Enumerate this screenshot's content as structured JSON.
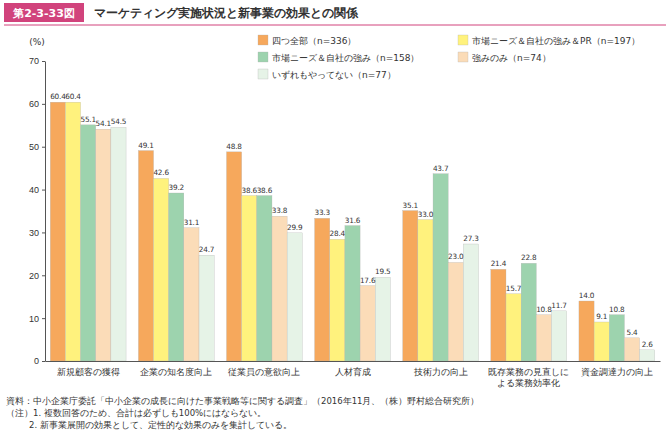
{
  "chart_data": {
    "type": "bar",
    "figure_label": "第2-3-33図",
    "title": "マーケティング実施状況と新事業の効果との関係",
    "y_label": "(%)",
    "categories": [
      "新規顧客の獲得",
      "企業の知名度向上",
      "従業員の意欲向上",
      "人材育成",
      "技術力の向上",
      "既存業務の見直しによる業務効率化",
      "資金調達力の向上"
    ],
    "series": [
      {
        "name": "四つ全部（n=336）",
        "color": "#f6a85c",
        "values": [
          60.4,
          49.1,
          48.8,
          33.3,
          35.1,
          21.4,
          14.0
        ],
        "value_labels": [
          "60.4",
          "49.1",
          "48.8",
          "33.3",
          "35.1",
          "21.4",
          "14.0"
        ]
      },
      {
        "name": "市場ニーズ＆自社の強み＆PR（n=197）",
        "color": "#fff27d",
        "values": [
          60.4,
          42.6,
          38.6,
          28.4,
          33.0,
          15.7,
          9.1
        ],
        "value_labels": [
          "60.4",
          "42.6",
          "38.6",
          "28.4",
          "33.0",
          "15.7",
          "9.1"
        ]
      },
      {
        "name": "市場ニーズ＆自社の強み（n=158）",
        "color": "#9dd3ae",
        "values": [
          55.1,
          39.2,
          38.6,
          31.6,
          43.7,
          22.8,
          10.8
        ],
        "value_labels": [
          "55.1",
          "39.2",
          "38.6",
          "31.6",
          "43.7",
          "22.8",
          "10.8"
        ]
      },
      {
        "name": "強みのみ（n=74）",
        "color": "#fbdcb8",
        "values": [
          54.1,
          31.1,
          33.8,
          17.6,
          23.0,
          10.8,
          5.4
        ],
        "value_labels": [
          "54.1",
          "31.1",
          "33.8",
          "17.6",
          "23.0",
          "10.8",
          "5.4"
        ]
      },
      {
        "name": "いずれもやってない（n=77）",
        "color": "#e6f3e7",
        "values": [
          54.5,
          24.7,
          29.9,
          19.5,
          27.3,
          11.7,
          2.6
        ],
        "value_labels": [
          "54.5",
          "24.7",
          "29.9",
          "19.5",
          "27.3",
          "11.7",
          "2.6"
        ]
      }
    ],
    "ylim": [
      0,
      70
    ],
    "yticks": [
      0,
      10,
      20,
      30,
      40,
      50,
      60,
      70
    ],
    "grid": false,
    "legend": "top-right",
    "data_labels": true,
    "notes": [
      "資料：中小企業庁委託「中小企業の成長に向けた事業戦略等に関する調査」（2016年11月、（株）野村総合研究所）",
      "（注）1. 複数回答のため、合計は必ずしも100%にはならない。",
      "2. 新事業展開の効果として、定性的な効果のみを集計している。"
    ]
  }
}
